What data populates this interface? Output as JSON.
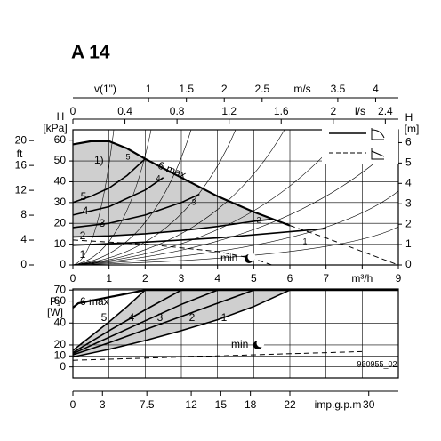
{
  "chart_data": [
    {
      "type": "line",
      "title": "A 14",
      "footnote": "1)",
      "xlim": [
        0,
        9
      ],
      "xticks": [
        0,
        1,
        2,
        3,
        4,
        5,
        6,
        7,
        {
          "value": 8,
          "label": "m³/h"
        },
        9
      ],
      "ylabel": "H",
      "yunit": "[kPa]",
      "ylim": [
        0,
        65
      ],
      "yticks": [
        0,
        10,
        20,
        30,
        40,
        50,
        60
      ],
      "y2label": "H",
      "y2unit": "[m]",
      "y2lim": [
        0,
        6.63
      ],
      "y2ticks": [
        0,
        1,
        2,
        3,
        4,
        5,
        6
      ],
      "y3label": "ft",
      "y3lim": [
        0,
        21.74
      ],
      "y3ticks": [
        0,
        4,
        8,
        12,
        16,
        20
      ],
      "ls_axis": {
        "label": "l/s",
        "xlim": [
          0,
          2.5
        ],
        "xticks": [
          0,
          0.4,
          0.8,
          1.2,
          1.6,
          2,
          2.4
        ]
      },
      "v_axis": {
        "label": "v(1\")",
        "unit": "m/s",
        "xlim": [
          0,
          4.3
        ],
        "xticks": [
          1,
          1.5,
          2,
          2.5,
          3.5,
          4
        ]
      },
      "grid": true,
      "shade": "#cfcfcf",
      "series": [
        {
          "name": "6 max",
          "color": "#000000",
          "x": [
            0,
            0.5,
            1,
            1.5,
            2,
            2.5,
            3,
            4,
            5,
            6
          ],
          "values": [
            58,
            59.5,
            59.5,
            56,
            51,
            46.5,
            42,
            33,
            25.5,
            19
          ]
        },
        {
          "color": "#000000",
          "dashed": true,
          "x": [
            6,
            7,
            8,
            9
          ],
          "values": [
            19,
            13,
            6.5,
            0
          ]
        },
        {
          "name": "5",
          "color": "#000000",
          "x": [
            0,
            0.5,
            1,
            1.5,
            2
          ],
          "values": [
            30,
            33,
            37,
            43,
            51
          ]
        },
        {
          "name": "4",
          "color": "#000000",
          "x": [
            0,
            1,
            2,
            2.5
          ],
          "values": [
            24,
            28,
            36,
            42
          ]
        },
        {
          "name": "3",
          "color": "#000000",
          "x": [
            0,
            1,
            2,
            3,
            3.5
          ],
          "values": [
            18,
            20,
            24,
            30,
            34
          ]
        },
        {
          "name": "2",
          "color": "#000000",
          "x": [
            0,
            1,
            2,
            3,
            4,
            5,
            5.5
          ],
          "values": [
            13.5,
            14,
            15,
            16.5,
            18.5,
            21,
            22
          ]
        },
        {
          "name": "1",
          "color": "#000000",
          "x": [
            0,
            2,
            4,
            6,
            7
          ],
          "values": [
            9.5,
            11,
            13,
            16,
            17.5
          ]
        },
        {
          "name": "min",
          "color": "#000000",
          "dashed": true,
          "x": [
            0,
            2,
            4,
            5,
            5.5
          ],
          "values": [
            12,
            10,
            6.5,
            3,
            0
          ]
        }
      ]
    },
    {
      "type": "line",
      "xlim": [
        0,
        9
      ],
      "ylabel": "P₁",
      "yunit": "[W]",
      "ylim": [
        -10,
        71
      ],
      "yticks": [
        0,
        10,
        20,
        40,
        60,
        70
      ],
      "gpm_axis": {
        "label": "imp.g.p.m",
        "xlim": [
          0,
          33
        ],
        "xticks": [
          0,
          3,
          7.5,
          12,
          15,
          18,
          22,
          30
        ]
      },
      "code": "960955_02",
      "grid": true,
      "shade": "#cfcfcf",
      "series": [
        {
          "name": "6 max",
          "color": "#000000",
          "x": [
            0,
            0.15,
            2,
            9
          ],
          "values": [
            54,
            58,
            70,
            70
          ]
        },
        {
          "name": "5",
          "color": "#000000",
          "x": [
            0,
            0.5,
            1,
            1.5,
            2
          ],
          "values": [
            15,
            28,
            41,
            55,
            70
          ]
        },
        {
          "name": "4",
          "color": "#000000",
          "x": [
            0,
            1,
            2,
            3
          ],
          "values": [
            13,
            33,
            52,
            70
          ]
        },
        {
          "name": "3",
          "color": "#000000",
          "x": [
            0,
            1,
            2,
            3,
            4
          ],
          "values": [
            12,
            27,
            42,
            57,
            70
          ]
        },
        {
          "name": "2",
          "color": "#000000",
          "x": [
            0,
            1,
            2,
            3,
            4,
            5
          ],
          "values": [
            11,
            22,
            34,
            46,
            58,
            70
          ]
        },
        {
          "name": "1",
          "color": "#000000",
          "x": [
            0,
            1,
            2,
            3,
            4,
            5,
            6
          ],
          "values": [
            9,
            16,
            24,
            33,
            43,
            55,
            70
          ]
        },
        {
          "name": "min",
          "color": "#000000",
          "dashed": true,
          "x": [
            0,
            2,
            4,
            6,
            8
          ],
          "values": [
            6,
            8,
            10,
            12,
            14
          ]
        }
      ]
    }
  ]
}
